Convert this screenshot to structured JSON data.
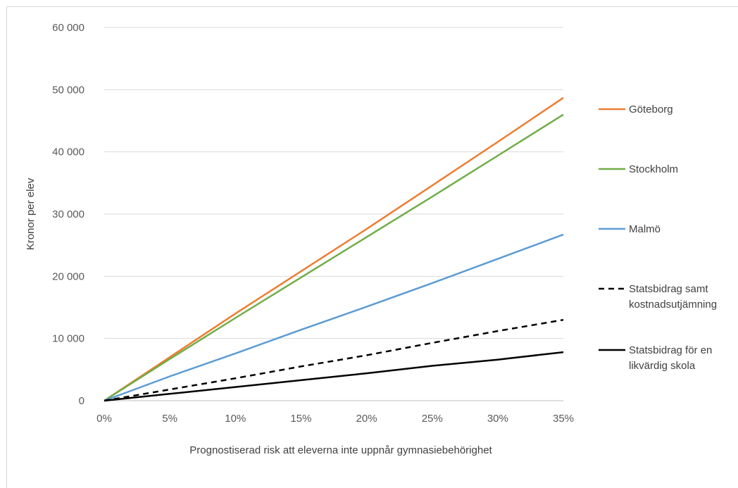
{
  "chart_data": {
    "type": "line",
    "title": "",
    "xlabel": "Prognostiserad risk att eleverna inte uppnår gymnasiebehörighet",
    "ylabel": "Kronor per elev",
    "x_ticks": [
      "0%",
      "5%",
      "10%",
      "15%",
      "20%",
      "25%",
      "30%",
      "35%"
    ],
    "y_ticks": [
      "0",
      "10 000",
      "20 000",
      "30 000",
      "40 000",
      "50 000",
      "60 000"
    ],
    "xlim": [
      0,
      35
    ],
    "ylim": [
      0,
      60000
    ],
    "grid": "horizontal",
    "legend_position": "right",
    "x": [
      0,
      5,
      10,
      15,
      20,
      25,
      30,
      35
    ],
    "series": [
      {
        "name": "Göteborg",
        "color": "#ed7d31",
        "style": "solid",
        "values": [
          0,
          7000,
          14000,
          20800,
          27600,
          34600,
          41600,
          48700
        ]
      },
      {
        "name": "Stockholm",
        "color": "#70ad47",
        "style": "solid",
        "values": [
          0,
          6700,
          13300,
          19800,
          26300,
          32800,
          39400,
          46000
        ]
      },
      {
        "name": "Malmö",
        "color": "#5b9bd5",
        "style": "solid",
        "values": [
          0,
          3900,
          7600,
          11400,
          15100,
          18900,
          22800,
          26700
        ]
      },
      {
        "name": "Statsbidrag samt\nkostnadsutjämning",
        "color": "#000000",
        "style": "dashed",
        "values": [
          0,
          1800,
          3600,
          5500,
          7300,
          9300,
          11200,
          13000
        ]
      },
      {
        "name": "Statsbidrag för en\nlikvärdig skola",
        "color": "#000000",
        "style": "solid",
        "values": [
          0,
          1100,
          2200,
          3300,
          4400,
          5600,
          6600,
          7800
        ]
      }
    ]
  }
}
